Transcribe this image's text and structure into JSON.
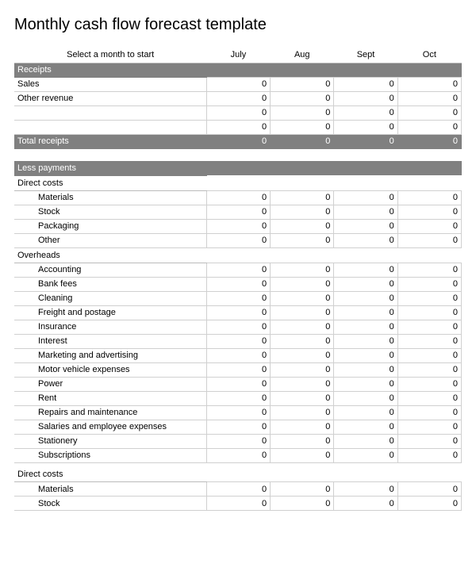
{
  "title": "Monthly cash flow forecast template",
  "header": {
    "select_label": "Select a month to start",
    "months": [
      "July",
      "Aug",
      "Sept",
      "Oct"
    ]
  },
  "sections": {
    "receipts": {
      "title": "Receipts",
      "rows": [
        {
          "label": "Sales",
          "vals": [
            "0",
            "0",
            "0",
            "0"
          ]
        },
        {
          "label": "Other revenue",
          "vals": [
            "0",
            "0",
            "0",
            "0"
          ]
        },
        {
          "label": "",
          "vals": [
            "0",
            "0",
            "0",
            "0"
          ]
        },
        {
          "label": "",
          "vals": [
            "0",
            "0",
            "0",
            "0"
          ]
        }
      ],
      "total": {
        "label": "Total receipts",
        "vals": [
          "0",
          "0",
          "0",
          "0"
        ]
      }
    },
    "less_payments": {
      "title": "Less payments"
    },
    "direct_costs_1": {
      "title": "Direct costs",
      "rows": [
        {
          "label": "Materials",
          "vals": [
            "0",
            "0",
            "0",
            "0"
          ]
        },
        {
          "label": "Stock",
          "vals": [
            "0",
            "0",
            "0",
            "0"
          ]
        },
        {
          "label": "Packaging",
          "vals": [
            "0",
            "0",
            "0",
            "0"
          ]
        },
        {
          "label": "Other",
          "vals": [
            "0",
            "0",
            "0",
            "0"
          ]
        }
      ]
    },
    "overheads": {
      "title": "Overheads",
      "rows": [
        {
          "label": "Accounting",
          "vals": [
            "0",
            "0",
            "0",
            "0"
          ]
        },
        {
          "label": "Bank fees",
          "vals": [
            "0",
            "0",
            "0",
            "0"
          ]
        },
        {
          "label": "Cleaning",
          "vals": [
            "0",
            "0",
            "0",
            "0"
          ]
        },
        {
          "label": "Freight and postage",
          "vals": [
            "0",
            "0",
            "0",
            "0"
          ]
        },
        {
          "label": "Insurance",
          "vals": [
            "0",
            "0",
            "0",
            "0"
          ]
        },
        {
          "label": "Interest",
          "vals": [
            "0",
            "0",
            "0",
            "0"
          ]
        },
        {
          "label": "Marketing and advertising",
          "vals": [
            "0",
            "0",
            "0",
            "0"
          ]
        },
        {
          "label": "Motor vehicle expenses",
          "vals": [
            "0",
            "0",
            "0",
            "0"
          ]
        },
        {
          "label": "Power",
          "vals": [
            "0",
            "0",
            "0",
            "0"
          ]
        },
        {
          "label": "Rent",
          "vals": [
            "0",
            "0",
            "0",
            "0"
          ]
        },
        {
          "label": "Repairs and maintenance",
          "vals": [
            "0",
            "0",
            "0",
            "0"
          ]
        },
        {
          "label": "Salaries and employee expenses",
          "vals": [
            "0",
            "0",
            "0",
            "0"
          ]
        },
        {
          "label": "Stationery",
          "vals": [
            "0",
            "0",
            "0",
            "0"
          ]
        },
        {
          "label": "Subscriptions",
          "vals": [
            "0",
            "0",
            "0",
            "0"
          ]
        }
      ]
    },
    "direct_costs_2": {
      "title": "Direct costs",
      "rows": [
        {
          "label": "Materials",
          "vals": [
            "0",
            "0",
            "0",
            "0"
          ]
        },
        {
          "label": "Stock",
          "vals": [
            "0",
            "0",
            "0",
            "0"
          ]
        }
      ]
    }
  },
  "colors": {
    "dark_section_bg": "#808080",
    "border": "#d0d0d0",
    "rule": "#000000"
  }
}
